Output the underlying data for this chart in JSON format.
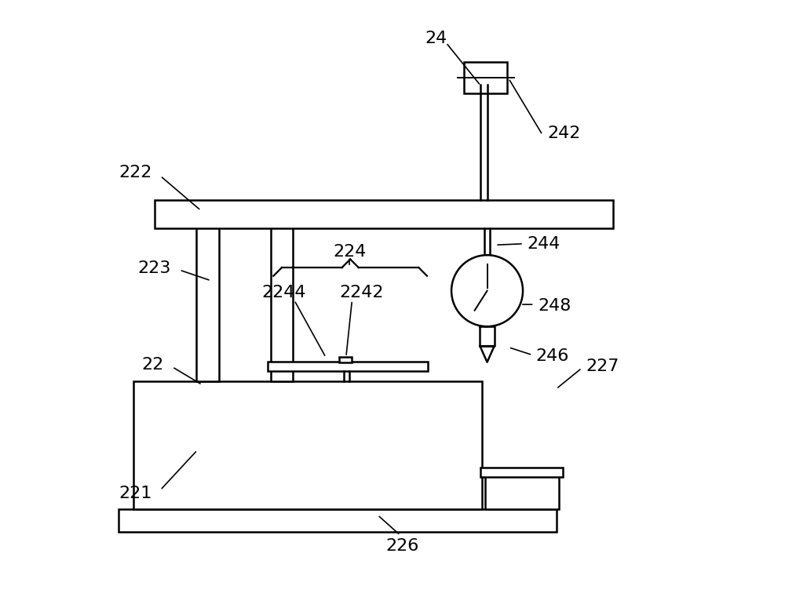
{
  "bg_color": "#ffffff",
  "line_color": "#000000",
  "linewidth": 1.8,
  "fig_width": 10.0,
  "fig_height": 7.61,
  "label_fontsize": 16
}
